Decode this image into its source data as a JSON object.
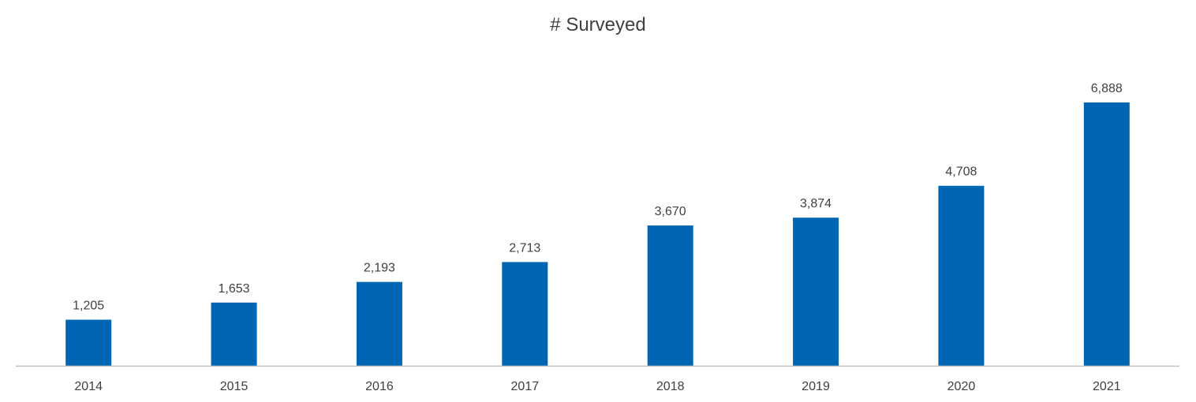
{
  "chart_data": {
    "type": "bar",
    "title": "# Surveyed",
    "categories": [
      "2014",
      "2015",
      "2016",
      "2017",
      "2018",
      "2019",
      "2020",
      "2021"
    ],
    "values": [
      1205,
      1653,
      2193,
      2713,
      3670,
      3874,
      4708,
      6888
    ],
    "data_labels": [
      "1,205",
      "1,653",
      "2,193",
      "2,713",
      "3,670",
      "3,874",
      "4,708",
      "6,888"
    ],
    "xlabel": "",
    "ylabel": "",
    "ylim": [
      0,
      6888
    ],
    "grid": false,
    "legend": "none",
    "bar_color": "#0066B3",
    "axis_color": "#BFBFBF"
  }
}
